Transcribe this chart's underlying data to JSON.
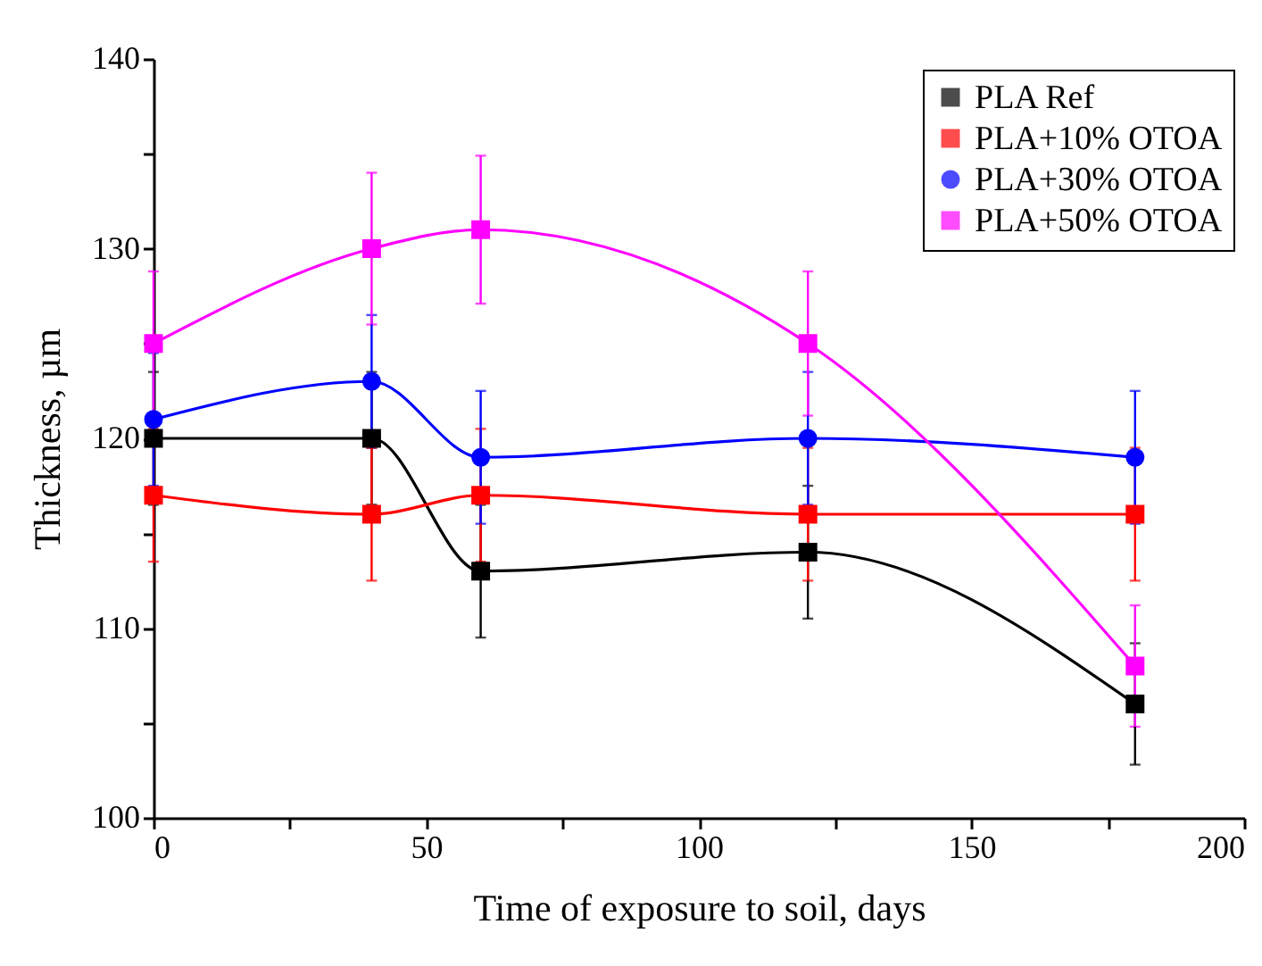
{
  "chart_data": {
    "type": "line",
    "xlabel": "Time of exposure to soil, days",
    "ylabel": "Thickness, µm",
    "x": [
      0,
      40,
      60,
      120,
      180
    ],
    "xlim": [
      0,
      200
    ],
    "xticks": [
      0,
      {
        "value": 25,
        "label": null
      },
      50,
      {
        "value": 75,
        "label": null
      },
      100,
      {
        "value": 125,
        "label": null
      },
      150,
      {
        "value": 175,
        "label": null
      },
      200
    ],
    "ylim": [
      100,
      140
    ],
    "yticks": [
      100,
      {
        "value": 105,
        "label": null
      },
      110,
      {
        "value": 115,
        "label": null
      },
      120,
      {
        "value": 125,
        "label": null
      },
      130,
      {
        "value": 135,
        "label": null
      },
      140
    ],
    "series": [
      {
        "name": "PLA Ref",
        "color": "#000000",
        "marker": "square",
        "values": [
          120,
          120,
          113,
          114,
          106
        ],
        "errors": [
          3.5,
          3.5,
          3.5,
          3.5,
          3.2
        ]
      },
      {
        "name": "PLA+10% OTOA",
        "color": "#ff0000",
        "marker": "square",
        "values": [
          117,
          116,
          117,
          116,
          116
        ],
        "errors": [
          3.5,
          3.5,
          3.5,
          3.5,
          3.5
        ]
      },
      {
        "name": "PLA+30% OTOA",
        "color": "#0000ff",
        "marker": "circle",
        "values": [
          121,
          123,
          119,
          120,
          119
        ],
        "errors": [
          3.5,
          3.5,
          3.5,
          3.5,
          3.5
        ]
      },
      {
        "name": "PLA+50% OTOA",
        "color": "#ff00ff",
        "marker": "square",
        "values": [
          125,
          130,
          131,
          125,
          108
        ],
        "errors": [
          3.8,
          4,
          3.9,
          3.8,
          3.2
        ]
      }
    ],
    "legend": "top right",
    "grid": false,
    "line_style": "solid"
  }
}
